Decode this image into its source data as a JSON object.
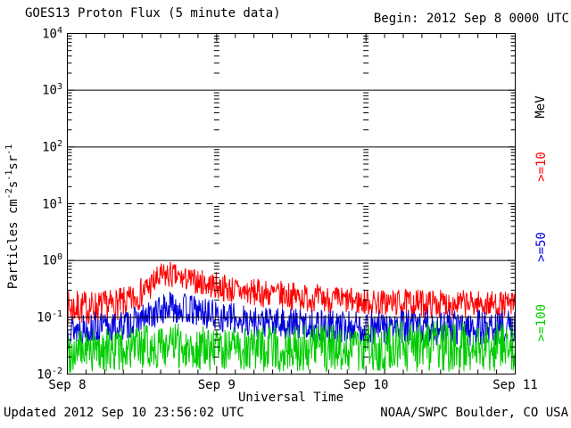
{
  "header": {
    "title": "GOES13 Proton Flux (5 minute data)",
    "begin_label": "Begin: 2012 Sep 8 0000 UTC"
  },
  "footer": {
    "updated": "Updated 2012 Sep 10 23:56:02 UTC",
    "source": "NOAA/SWPC Boulder, CO USA"
  },
  "chart_data": {
    "type": "line",
    "title": "GOES13 Proton Flux (5 minute data)",
    "begin": "2012 Sep 8 0000 UTC",
    "xlabel": "Universal Time",
    "right_axis_label": "MeV",
    "y_units": "Particles cm^-2 s^-1 sr^-1",
    "ylabel_segments": [
      {
        "t": "Particles cm"
      },
      {
        "t": "-2",
        "sup": true
      },
      {
        "t": "s"
      },
      {
        "t": "-1",
        "sup": true
      },
      {
        "t": "sr"
      },
      {
        "t": "-1",
        "sup": true
      }
    ],
    "x_axis": {
      "range_hours": [
        0,
        72
      ],
      "tick_labels": [
        "Sep 8",
        "Sep 9",
        "Sep 10",
        "Sep 11"
      ],
      "tick_hours": [
        0,
        24,
        48,
        72
      ],
      "minor_tick_hours": 3,
      "day_gridline_hours": [
        24,
        48
      ]
    },
    "y_axis": {
      "scale": "log",
      "log_range": [
        -2,
        4
      ],
      "ticks": [
        {
          "base": "10",
          "exp": "4",
          "log": 4
        },
        {
          "base": "10",
          "exp": "3",
          "log": 3
        },
        {
          "base": "10",
          "exp": "2",
          "log": 2
        },
        {
          "base": "10",
          "exp": "1",
          "log": 1
        },
        {
          "base": "10",
          "exp": "0",
          "log": 0
        },
        {
          "base": "10",
          "exp": "-1",
          "log": -1
        },
        {
          "base": "10",
          "exp": "-2",
          "log": -2
        }
      ],
      "solid_gridlines_log": [
        3,
        2,
        0,
        -1
      ],
      "dashed_gridlines_log": [
        1
      ]
    },
    "samples_per_hour": 12,
    "series": [
      {
        "name": "p_ge10",
        "label": ">=10",
        "energy_mev": ">=10 MeV",
        "color": "#ff0000",
        "seed": 7,
        "envelope_log10": [
          [
            0,
            -1.15,
            -0.52
          ],
          [
            6,
            -1.12,
            -0.52
          ],
          [
            10,
            -1.0,
            -0.45
          ],
          [
            13,
            -0.75,
            -0.2
          ],
          [
            15,
            -0.55,
            -0.05
          ],
          [
            16.5,
            -0.5,
            0.0
          ],
          [
            18,
            -0.52,
            -0.1
          ],
          [
            21,
            -0.6,
            -0.15
          ],
          [
            24,
            -0.7,
            -0.2
          ],
          [
            28,
            -0.8,
            -0.3
          ],
          [
            34,
            -0.85,
            -0.35
          ],
          [
            40,
            -0.92,
            -0.42
          ],
          [
            48,
            -0.97,
            -0.5
          ],
          [
            56,
            -1.0,
            -0.5
          ],
          [
            64,
            -1.0,
            -0.52
          ],
          [
            72,
            -1.0,
            -0.55
          ]
        ]
      },
      {
        "name": "p_ge50",
        "label": ">=50",
        "energy_mev": ">=50 MeV",
        "color": "#0000dd",
        "seed": 13,
        "envelope_log10": [
          [
            0,
            -1.5,
            -0.92
          ],
          [
            8,
            -1.45,
            -0.9
          ],
          [
            12,
            -1.3,
            -0.78
          ],
          [
            15,
            -1.15,
            -0.6
          ],
          [
            17,
            -1.1,
            -0.52
          ],
          [
            20,
            -1.15,
            -0.6
          ],
          [
            24,
            -1.25,
            -0.7
          ],
          [
            30,
            -1.35,
            -0.8
          ],
          [
            40,
            -1.45,
            -0.85
          ],
          [
            48,
            -1.5,
            -0.88
          ],
          [
            60,
            -1.5,
            -0.85
          ],
          [
            72,
            -1.5,
            -0.88
          ]
        ]
      },
      {
        "name": "p_ge100",
        "label": ">=100",
        "energy_mev": ">=100 MeV",
        "color": "#00cc00",
        "seed": 99,
        "envelope_log10": [
          [
            0,
            -1.98,
            -1.22
          ],
          [
            10,
            -1.95,
            -1.18
          ],
          [
            16,
            -1.9,
            -1.08
          ],
          [
            24,
            -1.95,
            -1.18
          ],
          [
            36,
            -1.97,
            -1.12
          ],
          [
            48,
            -1.95,
            -1.1
          ],
          [
            60,
            -1.97,
            -1.05
          ],
          [
            72,
            -1.97,
            -1.08
          ]
        ]
      }
    ]
  }
}
